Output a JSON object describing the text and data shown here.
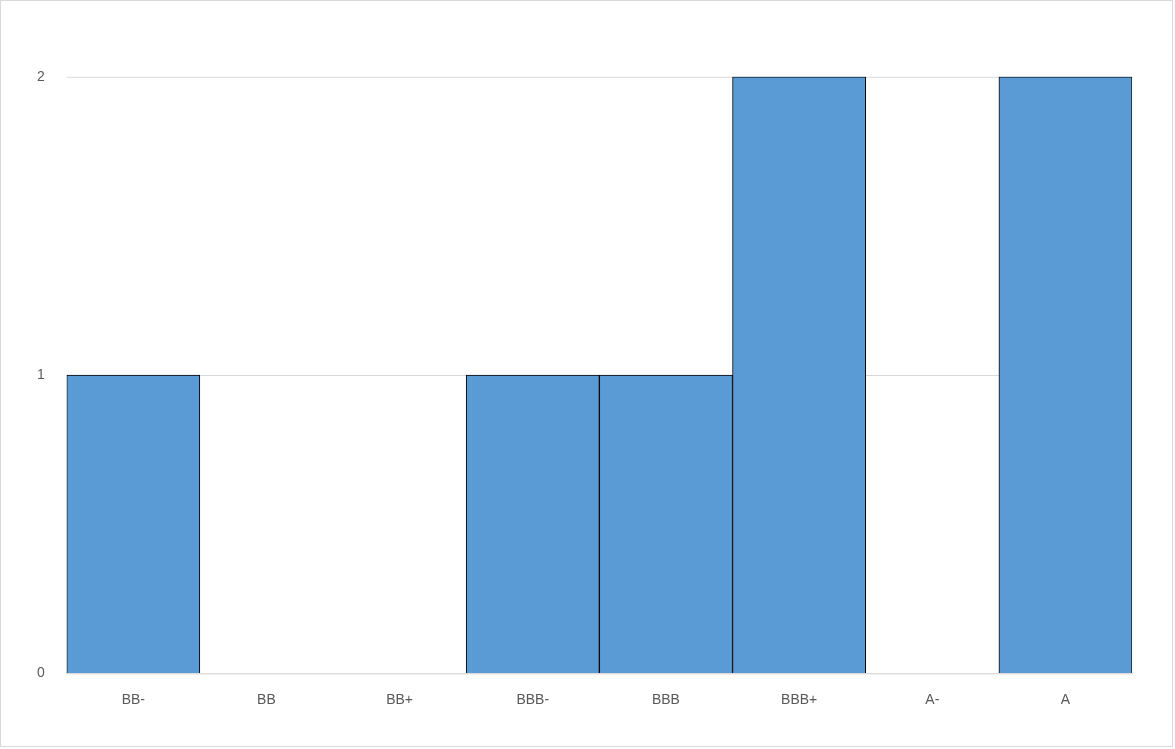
{
  "chart_data": {
    "type": "bar",
    "categories": [
      "BB-",
      "BB",
      "BB+",
      "BBB-",
      "BBB",
      "BBB+",
      "A-",
      "A"
    ],
    "values": [
      1,
      0,
      0,
      1,
      1,
      2,
      0,
      2
    ],
    "color": "#5b9bd5",
    "ylim": [
      0,
      2
    ],
    "yticks": [
      0,
      1,
      2
    ],
    "grid": "y"
  }
}
